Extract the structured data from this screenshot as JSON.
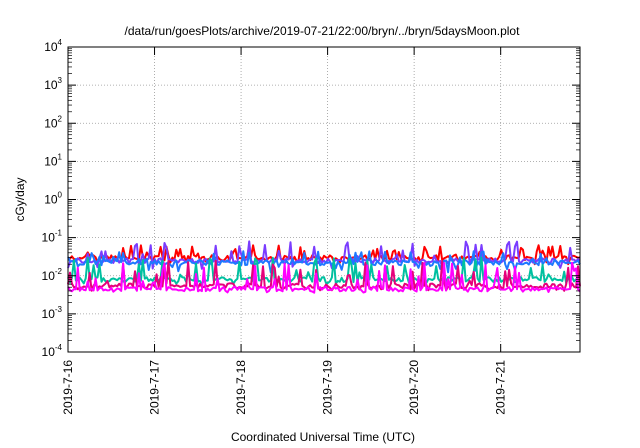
{
  "chart_data": {
    "type": "line",
    "title": "/data/run/goesPlots/archive/2019-07-21/22:00/bryn/../bryn/5daysMoon.plot",
    "xlabel": "Coordinated Universal Time (UTC)",
    "ylabel": "cGy/day",
    "yscale": "log",
    "ylim": [
      0.0001,
      10000
    ],
    "xlim": [
      "2019-07-16",
      "2019-07-21T22:00"
    ],
    "x_ticks": [
      "2019-7-16",
      "2019-7-17",
      "2019-7-18",
      "2019-7-19",
      "2019-7-20",
      "2019-7-21"
    ],
    "y_ticks": [
      {
        "base": "10",
        "exp": "-4"
      },
      {
        "base": "10",
        "exp": "-3"
      },
      {
        "base": "10",
        "exp": "-2"
      },
      {
        "base": "10",
        "exp": "-1"
      },
      {
        "base": "10",
        "exp": "0"
      },
      {
        "base": "10",
        "exp": "1"
      },
      {
        "base": "10",
        "exp": "2"
      },
      {
        "base": "10",
        "exp": "3"
      },
      {
        "base": "10",
        "exp": "4"
      }
    ],
    "grid": true,
    "legend": "none",
    "series": [
      {
        "color": "#ff0000",
        "baseline": 0.03,
        "spike_max": 0.065,
        "dip_min": 0.02
      },
      {
        "color": "#7a3cff",
        "baseline": 0.025,
        "spike_max": 0.08,
        "dip_min": 0.015
      },
      {
        "color": "#1e78ff",
        "baseline": 0.022,
        "spike_max": 0.045,
        "dip_min": 0.012
      },
      {
        "color": "#00c0a0",
        "baseline": 0.008,
        "spike_max": 0.03,
        "dip_min": 0.006
      },
      {
        "color": "#e6007a",
        "baseline": 0.0055,
        "spike_max": 0.025,
        "dip_min": 0.004
      },
      {
        "color": "#ff00ff",
        "baseline": 0.0045,
        "spike_max": 0.022,
        "dip_min": 0.0035
      }
    ]
  }
}
